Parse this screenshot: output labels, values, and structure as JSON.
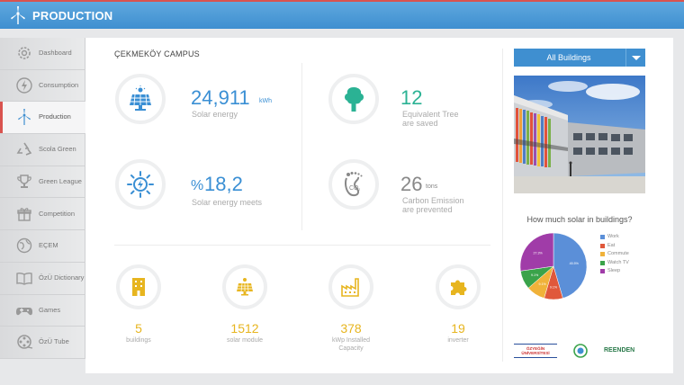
{
  "header": {
    "title": "PRODUCTION",
    "logo_icon": "wind-turbine-icon"
  },
  "sidebar": {
    "active_index": 2,
    "items": [
      {
        "label": "Dashboard",
        "icon": "gear-icon"
      },
      {
        "label": "Consumption",
        "icon": "lightning-icon"
      },
      {
        "label": "Production",
        "icon": "wind-turbine-icon"
      },
      {
        "label": "Scola Green",
        "icon": "recycle-icon"
      },
      {
        "label": "Green League",
        "icon": "trophy-icon"
      },
      {
        "label": "Competition",
        "icon": "gift-icon"
      },
      {
        "label": "EÇEM",
        "icon": "globe-icon"
      },
      {
        "label": "ÖzÜ Dictionary",
        "icon": "book-icon"
      },
      {
        "label": "Games",
        "icon": "gamepad-icon"
      },
      {
        "label": "ÖzÜ Tube",
        "icon": "film-reel-icon"
      }
    ]
  },
  "main": {
    "campus": "ÇEKMEKÖY CAMPUS",
    "solar_energy": {
      "value": "24,911",
      "unit": "kWh",
      "label": "Solar energy"
    },
    "trees": {
      "value": "12",
      "label_line1": "Equivalent Tree",
      "label_line2": "are saved"
    },
    "solar_meets": {
      "prefix": "%",
      "value": "18,2",
      "label": "Solar energy meets"
    },
    "carbon": {
      "value": "26",
      "unit": "tons",
      "label_line1": "Carbon Emission",
      "label_line2": "are  prevented"
    },
    "stats": [
      {
        "value": "5",
        "label": "buildings",
        "icon": "building-icon"
      },
      {
        "value": "1512",
        "label": "solar module",
        "icon": "solar-panel-icon"
      },
      {
        "value": "378",
        "label_line1": "kWp Installed",
        "label_line2": "Capacity",
        "icon": "factory-icon"
      },
      {
        "value": "19",
        "label": "inverter",
        "icon": "puzzle-icon"
      }
    ]
  },
  "right": {
    "dropdown": {
      "selected": "All Buildings"
    },
    "pie_title": "How much solar in buildings?",
    "logos": {
      "university": "ÖZYEĞİN ÜNİVERSİTESİ",
      "brand": "REENDEN"
    }
  },
  "chart_data": {
    "type": "pie",
    "title": "How much solar in buildings?",
    "slices": [
      {
        "name": "Work",
        "value": 45.5,
        "label": "45.5%",
        "color": "#5b8fd8"
      },
      {
        "name": "Eat",
        "value": 9.1,
        "label": "9.1%",
        "color": "#e0583b"
      },
      {
        "name": "Commute",
        "value": 9.1,
        "label": "9.1%",
        "color": "#f0b23a"
      },
      {
        "name": "Watch TV",
        "value": 9.1,
        "label": "9.1%",
        "color": "#3aa34a"
      },
      {
        "name": "Sleep",
        "value": 27.3,
        "label": "27.3%",
        "color": "#a03ca8"
      }
    ],
    "legend": "right"
  },
  "colors": {
    "accent_blue": "#3f8fd0",
    "green": "#2bb294",
    "yellow": "#e7b51f",
    "red": "#d9534f"
  }
}
